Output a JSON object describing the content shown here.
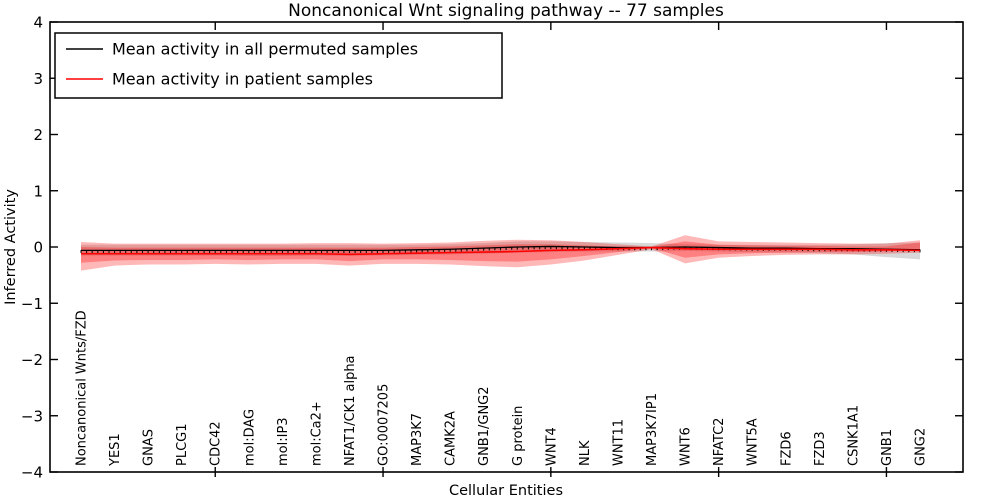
{
  "chart_data": {
    "type": "line",
    "title": "Noncanonical Wnt signaling pathway -- 77 samples",
    "xlabel": "Cellular Entities",
    "ylabel": "Inferred Activity",
    "ylim": [
      -4,
      4
    ],
    "yticks": [
      -4,
      -3,
      -2,
      -1,
      0,
      1,
      2,
      3,
      4
    ],
    "x_major_tick_indices": [
      4,
      9,
      14,
      19,
      24
    ],
    "grid": false,
    "legend_position": "upper left",
    "categories": [
      "Noncanonical Wnts/FZD",
      "YES1",
      "GNAS",
      "PLCG1",
      "CDC42",
      "mol:DAG",
      "mol:IP3",
      "mol:Ca2+",
      "NFAT1/CK1 alpha",
      "GO:0007205",
      "MAP3K7",
      "CAMK2A",
      "GNB1/GNG2",
      "G protein",
      "WNT4",
      "NLK",
      "WNT11",
      "MAP3K7IP1",
      "WNT6",
      "NFATC2",
      "WNT5A",
      "FZD6",
      "FZD3",
      "CSNK1A1",
      "GNB1",
      "GNG2"
    ],
    "series": [
      {
        "name": "Mean activity in all permuted samples",
        "color": "#000000",
        "band_color": "#999999",
        "values": [
          -0.06,
          -0.06,
          -0.06,
          -0.06,
          -0.06,
          -0.06,
          -0.06,
          -0.06,
          -0.06,
          -0.06,
          -0.05,
          -0.04,
          -0.02,
          0.0,
          0.01,
          0.0,
          -0.01,
          -0.01,
          0.0,
          -0.01,
          -0.02,
          -0.02,
          -0.03,
          -0.03,
          -0.04,
          -0.05
        ],
        "band_upper": [
          0.04,
          0.04,
          0.04,
          0.04,
          0.04,
          0.04,
          0.04,
          0.04,
          0.04,
          0.04,
          0.04,
          0.05,
          0.07,
          0.1,
          0.1,
          0.09,
          0.08,
          0.07,
          0.05,
          0.04,
          0.04,
          0.04,
          0.04,
          0.05,
          0.07,
          0.08
        ],
        "band_lower": [
          -0.15,
          -0.15,
          -0.15,
          -0.15,
          -0.15,
          -0.16,
          -0.16,
          -0.15,
          -0.16,
          -0.15,
          -0.14,
          -0.13,
          -0.12,
          -0.1,
          -0.09,
          -0.08,
          -0.08,
          -0.08,
          -0.07,
          -0.08,
          -0.09,
          -0.1,
          -0.11,
          -0.13,
          -0.18,
          -0.22
        ]
      },
      {
        "name": "Mean activity in patient samples",
        "color": "#ff0000",
        "band_color": "#ff0000",
        "values": [
          -0.12,
          -0.12,
          -0.12,
          -0.12,
          -0.12,
          -0.12,
          -0.12,
          -0.12,
          -0.13,
          -0.12,
          -0.11,
          -0.1,
          -0.09,
          -0.08,
          -0.06,
          -0.05,
          -0.03,
          -0.01,
          -0.03,
          -0.04,
          -0.04,
          -0.04,
          -0.04,
          -0.05,
          -0.05,
          -0.06
        ],
        "band_outer_upper": [
          0.09,
          0.06,
          0.06,
          0.06,
          0.06,
          0.06,
          0.06,
          0.07,
          0.07,
          0.06,
          0.07,
          0.08,
          0.11,
          0.13,
          0.12,
          0.09,
          0.05,
          0.01,
          0.21,
          0.1,
          0.09,
          0.08,
          0.07,
          0.06,
          0.06,
          0.12
        ],
        "band_outer_lower": [
          -0.42,
          -0.33,
          -0.31,
          -0.31,
          -0.3,
          -0.31,
          -0.3,
          -0.3,
          -0.33,
          -0.3,
          -0.3,
          -0.31,
          -0.34,
          -0.36,
          -0.31,
          -0.24,
          -0.14,
          -0.04,
          -0.29,
          -0.19,
          -0.16,
          -0.14,
          -0.13,
          -0.13,
          -0.12,
          -0.1
        ],
        "band_inner_upper": [
          0.0,
          -0.01,
          -0.01,
          -0.01,
          -0.01,
          -0.01,
          -0.01,
          -0.01,
          -0.01,
          -0.01,
          0.0,
          0.01,
          0.03,
          0.05,
          0.05,
          0.03,
          0.01,
          0.0,
          0.1,
          0.04,
          0.03,
          0.02,
          0.02,
          0.01,
          0.01,
          0.08
        ],
        "band_inner_lower": [
          -0.28,
          -0.24,
          -0.23,
          -0.23,
          -0.22,
          -0.23,
          -0.22,
          -0.22,
          -0.25,
          -0.22,
          -0.22,
          -0.23,
          -0.25,
          -0.26,
          -0.22,
          -0.16,
          -0.09,
          -0.02,
          -0.19,
          -0.13,
          -0.11,
          -0.1,
          -0.09,
          -0.09,
          -0.08,
          -0.04
        ]
      }
    ]
  }
}
